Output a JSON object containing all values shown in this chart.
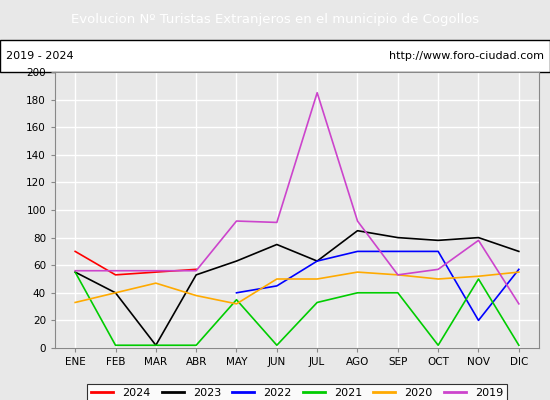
{
  "title": "Evolucion Nº Turistas Extranjeros en el municipio de Cogollos",
  "subtitle_left": "2019 - 2024",
  "subtitle_right": "http://www.foro-ciudad.com",
  "title_bg": "#4d7ebf",
  "title_color": "white",
  "months": [
    "ENE",
    "FEB",
    "MAR",
    "ABR",
    "MAY",
    "JUN",
    "JUL",
    "AGO",
    "SEP",
    "OCT",
    "NOV",
    "DIC"
  ],
  "ylim": [
    0,
    200
  ],
  "yticks": [
    0,
    20,
    40,
    60,
    80,
    100,
    120,
    140,
    160,
    180,
    200
  ],
  "series": {
    "2024": {
      "color": "#ff0000",
      "data": [
        70,
        53,
        55,
        57,
        null,
        null,
        null,
        null,
        null,
        null,
        null,
        null
      ]
    },
    "2023": {
      "color": "#000000",
      "data": [
        55,
        40,
        2,
        53,
        63,
        75,
        63,
        85,
        80,
        78,
        80,
        70
      ]
    },
    "2022": {
      "color": "#0000ff",
      "data": [
        null,
        null,
        null,
        null,
        40,
        45,
        63,
        70,
        70,
        70,
        20,
        57
      ]
    },
    "2021": {
      "color": "#00cc00",
      "data": [
        55,
        2,
        2,
        2,
        35,
        2,
        33,
        40,
        40,
        2,
        50,
        2
      ]
    },
    "2020": {
      "color": "#ffaa00",
      "data": [
        33,
        40,
        47,
        38,
        32,
        50,
        50,
        55,
        53,
        50,
        52,
        55
      ]
    },
    "2019": {
      "color": "#cc44cc",
      "data": [
        56,
        56,
        56,
        56,
        92,
        91,
        185,
        92,
        53,
        57,
        78,
        32
      ]
    }
  },
  "legend_order": [
    "2024",
    "2023",
    "2022",
    "2021",
    "2020",
    "2019"
  ],
  "bg_color": "#e8e8e8",
  "plot_bg": "#e8e8e8",
  "grid_color": "white"
}
